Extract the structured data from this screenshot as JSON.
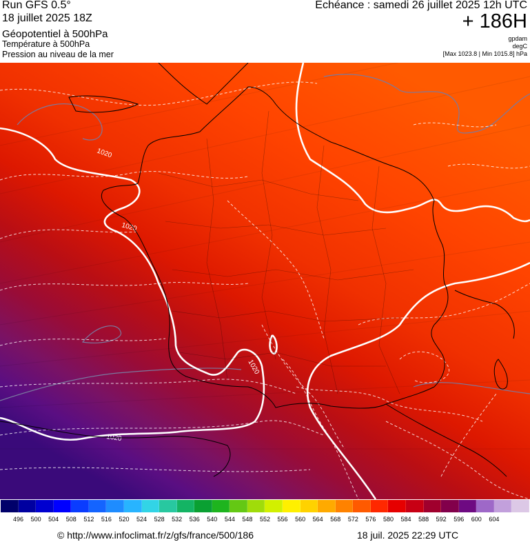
{
  "header": {
    "run_title": "Run GFS 0.5°",
    "run_date": "18 juillet 2025 18Z",
    "layer_geopotential": "Géopotentiel à 500hPa",
    "layer_temperature": "Température à 500hPa",
    "layer_pressure": "Pression au niveau de la mer",
    "echeance": "Echéance : samedi 26 juillet 2025 12h UTC",
    "horizon": "+ 186H",
    "unit_geopotential": "gpdam",
    "unit_temperature": "degC",
    "pressure_range": "[Max 1023.8 | Min 1015.8] hPa"
  },
  "map": {
    "isobar_labels": [
      "1020",
      "1020",
      "1020",
      "1020"
    ],
    "fill_palette_low_to_high": [
      "#3a0a7a",
      "#5a0e82",
      "#7a1264",
      "#9a0c36",
      "#b90e14",
      "#dd1800",
      "#f03000",
      "#ff4400",
      "#ff5a00"
    ],
    "isobar_color": "#ffffff",
    "isotherm_color": "#ffffff",
    "coast_color": "#000000",
    "minor_isobar_color": "#7a7aa0"
  },
  "scale": {
    "values": [
      "496",
      "500",
      "504",
      "508",
      "512",
      "516",
      "520",
      "524",
      "528",
      "532",
      "536",
      "540",
      "544",
      "548",
      "552",
      "556",
      "560",
      "564",
      "568",
      "572",
      "576",
      "580",
      "584",
      "588",
      "592",
      "596",
      "600",
      "604"
    ],
    "colors": [
      "#00006a",
      "#0000a0",
      "#0000d0",
      "#0000ff",
      "#0a3cff",
      "#1464ff",
      "#1e8cff",
      "#28b4ff",
      "#32d4e6",
      "#28c8a0",
      "#14b464",
      "#0aa032",
      "#1eb41e",
      "#64c814",
      "#a0dc0a",
      "#d2f000",
      "#fff000",
      "#ffd200",
      "#ffaa00",
      "#ff8200",
      "#ff5a00",
      "#ff2800",
      "#e60000",
      "#c80014",
      "#a0002d",
      "#82004b",
      "#6e0a82",
      "#9e68c8",
      "#c2a0dc",
      "#dcc8e6"
    ]
  },
  "footer": {
    "source": "© http://www.infoclimat.fr/z/gfs/france/500/186",
    "generated": "18 juil. 2025 22:29 UTC"
  }
}
